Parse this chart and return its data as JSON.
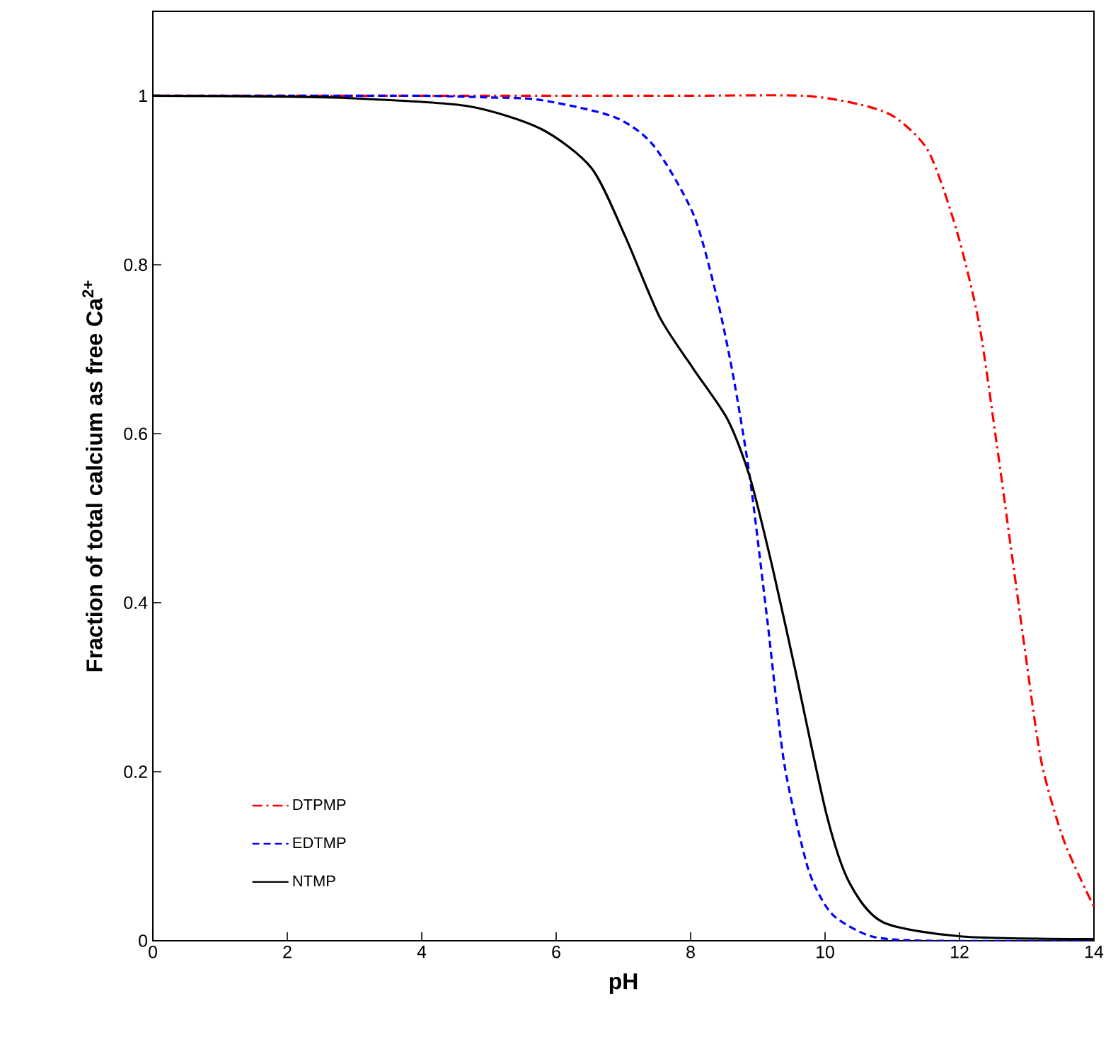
{
  "chart_data": {
    "type": "line",
    "xlabel": "pH",
    "ylabel": "Fraction of total calcium as free Ca$^{2+}$",
    "xlim": [
      0,
      14
    ],
    "ylim": [
      0,
      1.1
    ],
    "xticks": [
      0,
      2,
      4,
      6,
      8,
      10,
      12,
      14
    ],
    "yticks": [
      0,
      0.2,
      0.4,
      0.6,
      0.8,
      1
    ],
    "grid": false,
    "legend": "bottom left",
    "marker": "none",
    "series": [
      {
        "name": "DTPMP",
        "color": "#ff0000",
        "line_style": "dashdot",
        "x": [
          0,
          2,
          4,
          6,
          8,
          9.68,
          10.5,
          11.03,
          11.54,
          11.96,
          12.29,
          12.55,
          12.76,
          12.97,
          13.22,
          13.56,
          14
        ],
        "values": [
          1,
          1,
          1,
          1,
          1,
          1,
          0.99,
          0.975,
          0.934,
          0.84,
          0.731,
          0.59,
          0.468,
          0.346,
          0.211,
          0.117,
          0.04
        ]
      },
      {
        "name": "EDTMP",
        "color": "#0000ff",
        "line_style": "dashed",
        "x": [
          0,
          2,
          4,
          5,
          5.77,
          6.86,
          7.45,
          8.04,
          8.38,
          8.63,
          8.88,
          9.14,
          9.39,
          9.73,
          9.98,
          10.2,
          10.7,
          11.5,
          14
        ],
        "values": [
          1,
          1,
          1,
          0.998,
          0.995,
          0.975,
          0.941,
          0.86,
          0.765,
          0.67,
          0.549,
          0.38,
          0.211,
          0.09,
          0.045,
          0.025,
          0.005,
          0,
          0
        ]
      },
      {
        "name": "NTMP",
        "color": "#000000",
        "line_style": "solid",
        "x": [
          0,
          2,
          2.99,
          4.67,
          5.77,
          6.53,
          7.03,
          7.54,
          8.04,
          8.55,
          8.88,
          9.22,
          9.56,
          10.02,
          10.36,
          10.86,
          12.04,
          14
        ],
        "values": [
          1,
          0.999,
          0.997,
          0.988,
          0.961,
          0.914,
          0.833,
          0.738,
          0.677,
          0.617,
          0.549,
          0.441,
          0.319,
          0.15,
          0.069,
          0.022,
          0.005,
          0.002
        ]
      }
    ]
  }
}
